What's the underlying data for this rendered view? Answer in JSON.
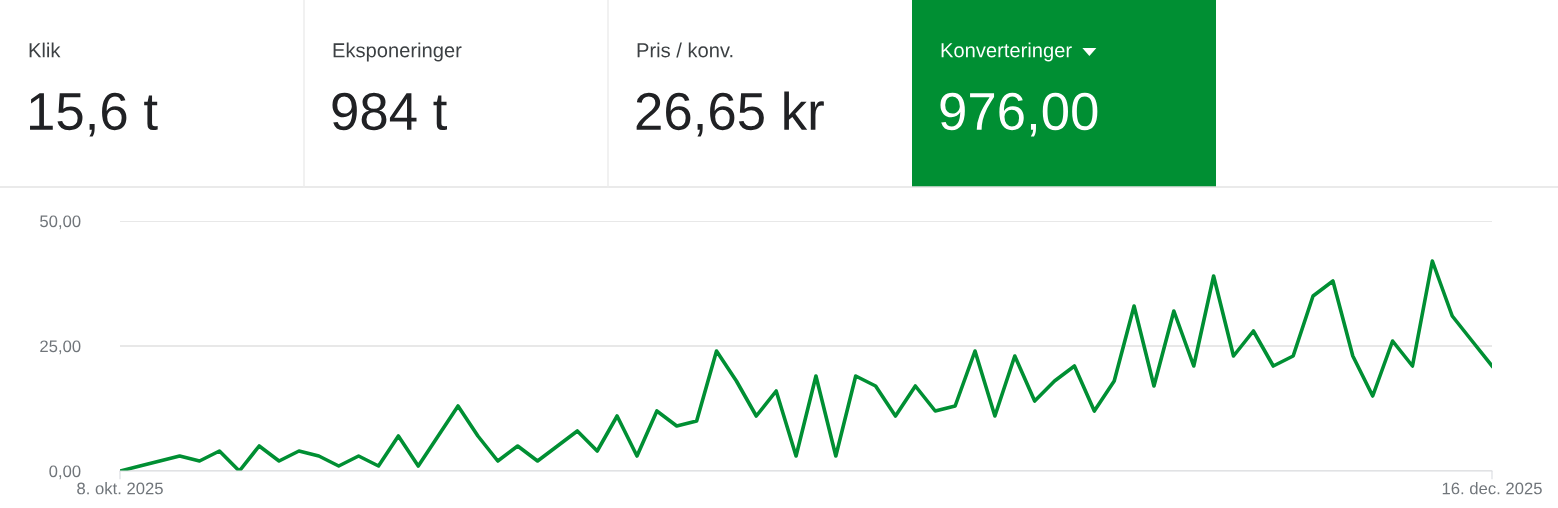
{
  "chart_data": [
    {
      "type": "other",
      "categories": [
        "Klik",
        "Eksponeringer",
        "Pris / konv.",
        "Konverteringer"
      ],
      "value_labels": [
        "15,6 t",
        "984 t",
        "26,65 kr",
        "976,00"
      ],
      "colors": [
        "#ffffff",
        "#ffffff",
        "#ffffff",
        "#008f33"
      ]
    },
    {
      "type": "line",
      "x": [
        "2025-10-08",
        "2025-10-09",
        "2025-10-10",
        "2025-10-11",
        "2025-10-12",
        "2025-10-13",
        "2025-10-14",
        "2025-10-15",
        "2025-10-16",
        "2025-10-17",
        "2025-10-18",
        "2025-10-19",
        "2025-10-20",
        "2025-10-21",
        "2025-10-22",
        "2025-10-23",
        "2025-10-24",
        "2025-10-25",
        "2025-10-26",
        "2025-10-27",
        "2025-10-28",
        "2025-10-29",
        "2025-10-30",
        "2025-10-31",
        "2025-11-01",
        "2025-11-02",
        "2025-11-03",
        "2025-11-04",
        "2025-11-05",
        "2025-11-06",
        "2025-11-07",
        "2025-11-08",
        "2025-11-09",
        "2025-11-10",
        "2025-11-11",
        "2025-11-12",
        "2025-11-13",
        "2025-11-14",
        "2025-11-15",
        "2025-11-16",
        "2025-11-17",
        "2025-11-18",
        "2025-11-19",
        "2025-11-20",
        "2025-11-21",
        "2025-11-22",
        "2025-11-23",
        "2025-11-24",
        "2025-11-25",
        "2025-11-26",
        "2025-11-27",
        "2025-11-28",
        "2025-11-29",
        "2025-11-30",
        "2025-12-01",
        "2025-12-02",
        "2025-12-03",
        "2025-12-04",
        "2025-12-05",
        "2025-12-06",
        "2025-12-07",
        "2025-12-08",
        "2025-12-09",
        "2025-12-10",
        "2025-12-11",
        "2025-12-12",
        "2025-12-13",
        "2025-12-14",
        "2025-12-15",
        "2025-12-16"
      ],
      "series": [
        {
          "color": "#008f33",
          "values": [
            0,
            1,
            2,
            3,
            2,
            4,
            0,
            5,
            2,
            4,
            3,
            1,
            3,
            1,
            7,
            1,
            7,
            13,
            7,
            2,
            5,
            2,
            5,
            8,
            4,
            11,
            3,
            12,
            9,
            10,
            24,
            18,
            11,
            16,
            3,
            19,
            3,
            19,
            17,
            11,
            17,
            12,
            13,
            24,
            11,
            23,
            14,
            18,
            21,
            12,
            18,
            33,
            17,
            32,
            21,
            39,
            23,
            28,
            21,
            23,
            35,
            38,
            23,
            15,
            26,
            21,
            42,
            31,
            26,
            21
          ]
        }
      ],
      "xlim": [
        "2025-10-08",
        "2025-12-16"
      ],
      "xticks": [
        {
          "value": "2025-10-08",
          "label": "8. okt. 2025"
        },
        {
          "value": "2025-12-16",
          "label": "16. dec. 2025"
        }
      ],
      "ylim": [
        0,
        50
      ],
      "yticks": [
        {
          "value": 0,
          "label": "0,00"
        },
        {
          "value": 25,
          "label": "25,00"
        },
        {
          "value": 50,
          "label": "50,00"
        }
      ],
      "grid": "y",
      "line_style": "solid",
      "marker": "none",
      "legend": false
    }
  ]
}
